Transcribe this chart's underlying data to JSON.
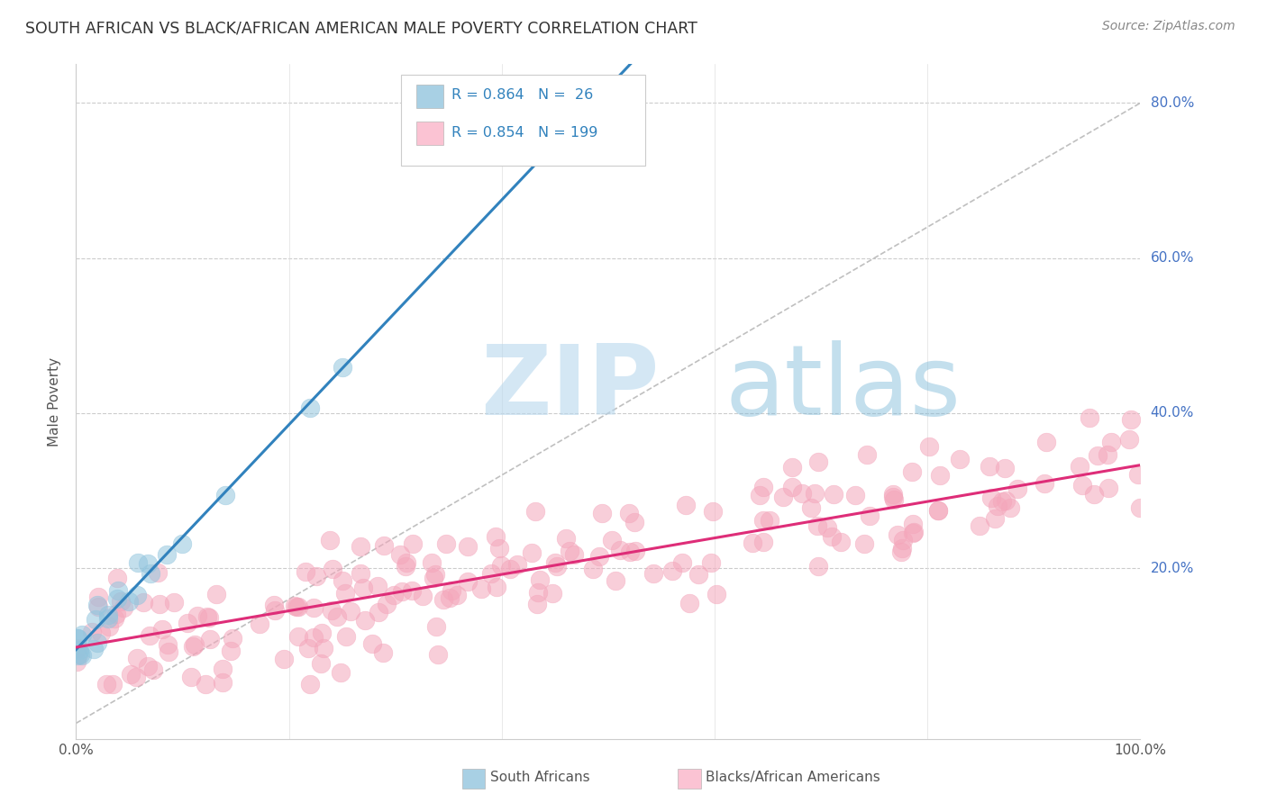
{
  "title": "SOUTH AFRICAN VS BLACK/AFRICAN AMERICAN MALE POVERTY CORRELATION CHART",
  "source": "Source: ZipAtlas.com",
  "ylabel": "Male Poverty",
  "xlim": [
    0,
    1.0
  ],
  "ylim": [
    -0.02,
    0.85
  ],
  "blue_color": "#92c5de",
  "pink_color": "#f4a6bb",
  "blue_line_color": "#3182bd",
  "pink_line_color": "#de2d78",
  "blue_fill_color": "#92c5de",
  "pink_fill_color": "#fbb4c8",
  "legend_label_blue": "South Africans",
  "legend_label_pink": "Blacks/African Americans",
  "watermark_zip": "ZIP",
  "watermark_atlas": "atlas",
  "background_color": "#ffffff",
  "grid_color": "#cccccc",
  "axis_tick_color": "#4472c4",
  "title_fontsize": 12.5,
  "blue_n": 26,
  "pink_n": 199,
  "blue_slope": 1.45,
  "blue_intercept": 0.095,
  "pink_slope": 0.235,
  "pink_intercept": 0.098
}
